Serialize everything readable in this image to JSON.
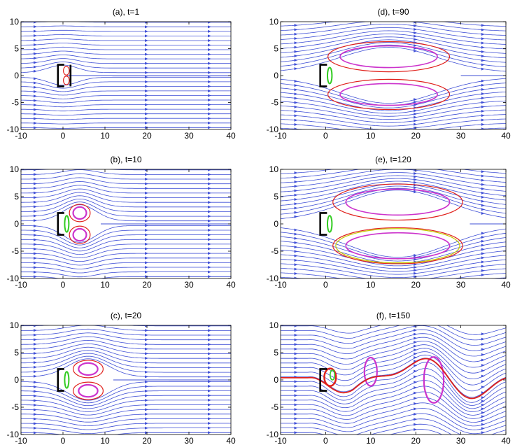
{
  "chart_data": [
    {
      "type": "streamline",
      "id": "a",
      "title": "(a), t=1",
      "xlim": [
        -10,
        40
      ],
      "ylim": [
        -10,
        10
      ],
      "xticks": [
        -10,
        0,
        10,
        20,
        30,
        40
      ],
      "yticks": [
        -10,
        -5,
        0,
        5,
        10
      ],
      "stage": 1,
      "eddy_center_x": 0.8,
      "eddy_length": 0,
      "colors": {
        "stream": "#3f4fd6",
        "body": "#000000",
        "red": "#e0201b",
        "green": "#33cc22",
        "magenta": "#cc33cc"
      }
    },
    {
      "type": "streamline",
      "id": "b",
      "title": "(b), t=10",
      "xlim": [
        -10,
        40
      ],
      "ylim": [
        -10,
        10
      ],
      "xticks": [
        -10,
        0,
        10,
        20,
        30,
        40
      ],
      "yticks": [
        -10,
        -5,
        0,
        5,
        10
      ],
      "stage": 2,
      "eddy_center_x": 4,
      "eddy_length": 9,
      "colors": {
        "stream": "#3f4fd6",
        "body": "#000000",
        "red": "#e0201b",
        "green": "#33cc22",
        "magenta": "#cc33cc"
      }
    },
    {
      "type": "streamline",
      "id": "c",
      "title": "(c), t=20",
      "xlim": [
        -10,
        40
      ],
      "ylim": [
        -10,
        10
      ],
      "xticks": [
        -10,
        0,
        10,
        20,
        30,
        40
      ],
      "yticks": [
        -10,
        -5,
        0,
        5,
        10
      ],
      "stage": 3,
      "eddy_center_x": 6,
      "eddy_length": 12,
      "colors": {
        "stream": "#3f4fd6",
        "body": "#000000",
        "red": "#e0201b",
        "green": "#33cc22",
        "magenta": "#cc33cc"
      }
    },
    {
      "type": "streamline",
      "id": "d",
      "title": "(d), t=90",
      "xlim": [
        -10,
        40
      ],
      "ylim": [
        -10,
        10
      ],
      "xticks": [
        -10,
        0,
        10,
        20,
        30,
        40
      ],
      "yticks": [
        -10,
        -5,
        0,
        5,
        10
      ],
      "stage": 4,
      "eddy_center_x": 14,
      "eddy_length": 30,
      "colors": {
        "stream": "#3f4fd6",
        "body": "#000000",
        "red": "#e0201b",
        "green": "#33cc22",
        "magenta": "#cc33cc"
      }
    },
    {
      "type": "streamline",
      "id": "e",
      "title": "(e), t=120",
      "xlim": [
        -10,
        40
      ],
      "ylim": [
        -10,
        10
      ],
      "xticks": [
        -10,
        0,
        10,
        20,
        30,
        40
      ],
      "yticks": [
        -10,
        -5,
        0,
        5,
        10
      ],
      "stage": 5,
      "eddy_center_x": 16,
      "eddy_length": 32,
      "colors": {
        "stream": "#3f4fd6",
        "body": "#000000",
        "red": "#e0201b",
        "green": "#33cc22",
        "magenta": "#cc33cc"
      }
    },
    {
      "type": "streamline",
      "id": "f",
      "title": "(f), t=150",
      "xlim": [
        -10,
        40
      ],
      "ylim": [
        -10,
        10
      ],
      "xticks": [
        -10,
        0,
        10,
        20,
        30,
        40
      ],
      "yticks": [
        -10,
        -5,
        0,
        5,
        10
      ],
      "stage": 6,
      "eddy_center_x": 25,
      "eddy_length": 40,
      "colors": {
        "stream": "#3f4fd6",
        "body": "#000000",
        "red": "#e0201b",
        "green": "#33cc22",
        "magenta": "#cc33cc"
      }
    }
  ]
}
